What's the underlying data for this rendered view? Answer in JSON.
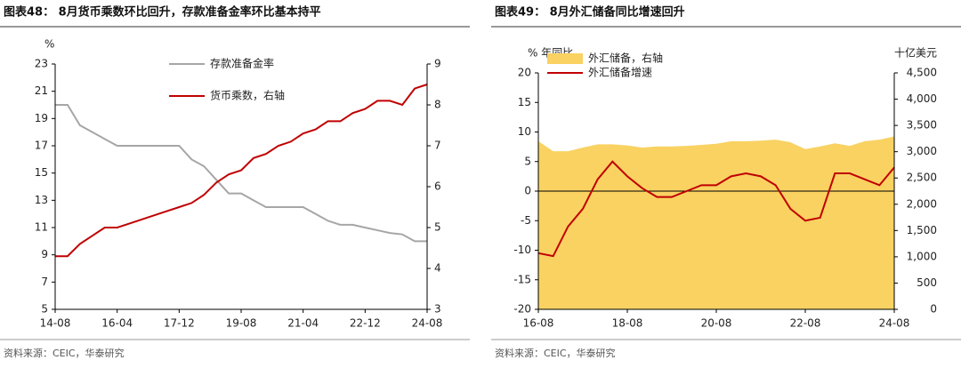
{
  "chart_data": [
    {
      "type": "line",
      "title": "图表48： 8月货币乘数环比回升，存款准备金率环比基本持平",
      "ylabel": "%",
      "source": "资料来源：CEIC，华泰研究",
      "categories": [
        "14-08",
        null,
        null,
        null,
        null,
        "16-04",
        null,
        null,
        null,
        null,
        "17-12",
        null,
        null,
        null,
        null,
        "19-08",
        null,
        null,
        null,
        null,
        "21-04",
        null,
        null,
        null,
        null,
        "22-12",
        null,
        null,
        null,
        null,
        "24-08"
      ],
      "ylim": [
        5,
        23
      ],
      "yticks": [
        5,
        7,
        9,
        11,
        13,
        15,
        17,
        19,
        21,
        23
      ],
      "y2lim": [
        3,
        9
      ],
      "y2ticks": [
        3,
        4,
        5,
        6,
        7,
        8,
        9
      ],
      "series": [
        {
          "name": "存款准备金率",
          "color": "#a6a6a6",
          "values": [
            20,
            20,
            18.5,
            18,
            17.5,
            17,
            17,
            17,
            17,
            17,
            17,
            16,
            15.5,
            14.5,
            13.5,
            13.5,
            13,
            12.5,
            12.5,
            12.5,
            12.5,
            12,
            11.5,
            11.2,
            11.2,
            11,
            10.8,
            10.6,
            10.5,
            10,
            10
          ]
        },
        {
          "name": "货币乘数，右轴",
          "color": "#c00000",
          "axis": "y2",
          "values": [
            4.3,
            4.3,
            4.6,
            4.8,
            5.0,
            5.0,
            5.1,
            5.2,
            5.3,
            5.4,
            5.5,
            5.6,
            5.8,
            6.1,
            6.3,
            6.4,
            6.7,
            6.8,
            7.0,
            7.1,
            7.3,
            7.4,
            7.6,
            7.6,
            7.8,
            7.9,
            8.1,
            8.1,
            8.0,
            8.4,
            8.5
          ]
        }
      ]
    },
    {
      "type": "line",
      "title": "图表49： 8月外汇储备同比增速回升",
      "ylabel": "% 年同比",
      "y2label": "十亿美元",
      "source": "资料来源：CEIC，华泰研究",
      "categories": [
        "16-08",
        null,
        null,
        null,
        null,
        null,
        "18-08",
        null,
        null,
        null,
        null,
        null,
        "20-08",
        null,
        null,
        null,
        null,
        null,
        "22-08",
        null,
        null,
        null,
        null,
        null,
        "24-08"
      ],
      "ylim": [
        -20,
        20
      ],
      "yticks": [
        -20,
        -15,
        -10,
        -5,
        0,
        5,
        10,
        15,
        20
      ],
      "y2lim": [
        0,
        4500
      ],
      "y2ticks": [
        0,
        500,
        {
          "value": 1000,
          "label": "1,000"
        },
        {
          "value": 1500,
          "label": "1,500"
        },
        {
          "value": 2000,
          "label": "2,000"
        },
        {
          "value": 2500,
          "label": "2,500"
        },
        {
          "value": 3000,
          "label": "3,000"
        },
        {
          "value": 3500,
          "label": "3,500"
        },
        {
          "value": 4000,
          "label": "4,000"
        },
        {
          "value": 4500,
          "label": "4,500"
        }
      ],
      "series": [
        {
          "name": "外汇储备，右轴",
          "color": "#f9d262",
          "type": "area",
          "axis": "y2",
          "values": [
            3200,
            3010,
            3010,
            3080,
            3140,
            3140,
            3120,
            3080,
            3100,
            3100,
            3110,
            3130,
            3150,
            3200,
            3200,
            3210,
            3230,
            3180,
            3050,
            3100,
            3160,
            3110,
            3200,
            3230,
            3290
          ]
        },
        {
          "name": "外汇储备增速",
          "color": "#c00000",
          "values": [
            -10.5,
            -11,
            -6,
            -3,
            2,
            5,
            2.5,
            0.5,
            -1,
            -1,
            0,
            1,
            1,
            2.5,
            3,
            2.5,
            1,
            -3,
            -5,
            -4.5,
            3,
            3,
            2,
            1,
            4
          ]
        }
      ]
    }
  ]
}
